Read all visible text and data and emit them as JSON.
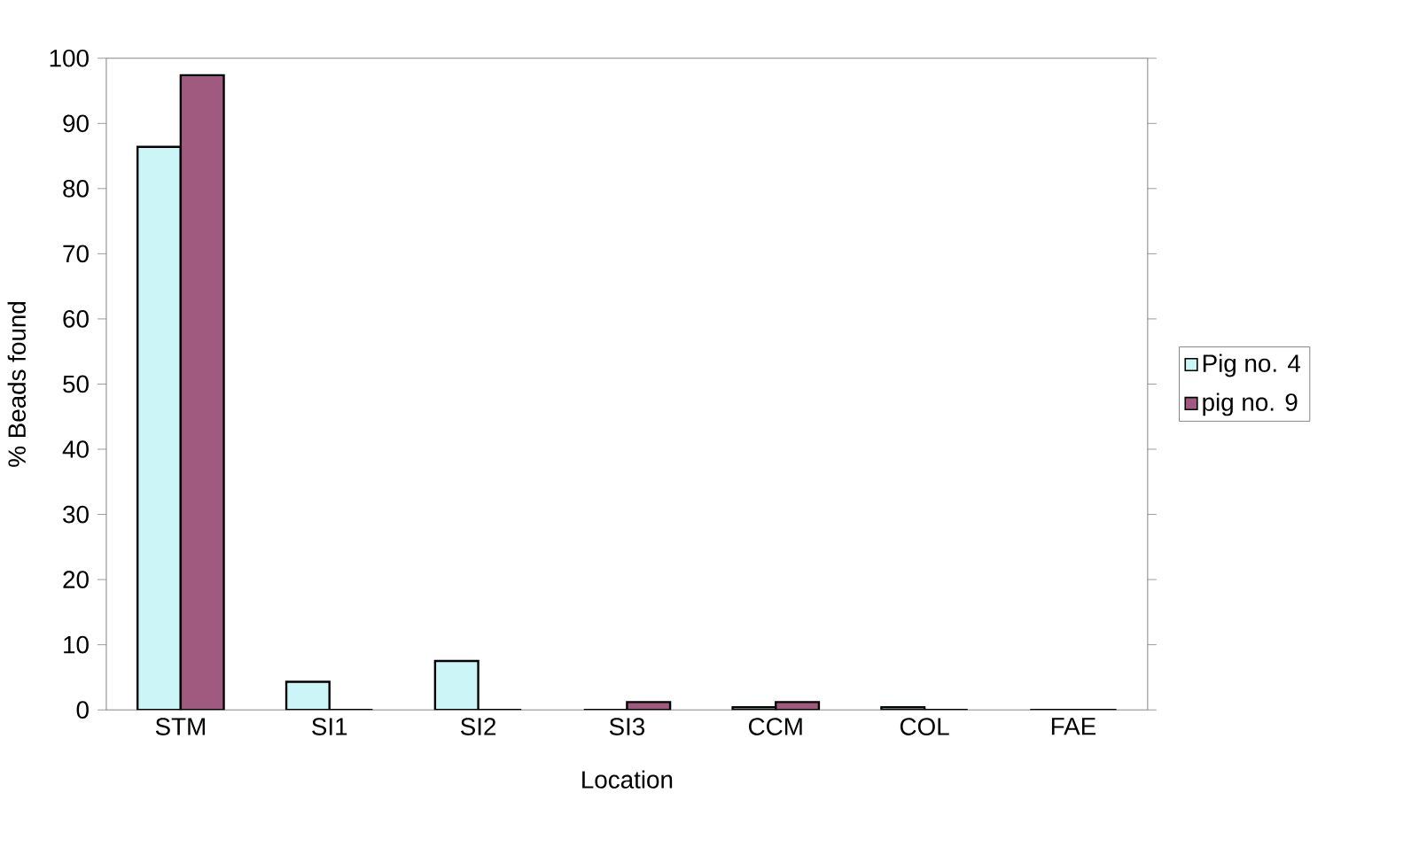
{
  "chart_data": {
    "type": "bar",
    "xlabel": "Location",
    "ylabel": "% Beads found",
    "categories": [
      "STM",
      "SI1",
      "SI2",
      "SI3",
      "CCM",
      "COL",
      "FAE"
    ],
    "series": [
      {
        "name": "Pig no. 4",
        "color": "#ccf5f8",
        "values": [
          86.4,
          4.3,
          7.5,
          0,
          0.4,
          0.4,
          0
        ]
      },
      {
        "name": "pig no. 9",
        "color": "#a05a80",
        "values": [
          97.4,
          0,
          0,
          1.2,
          1.2,
          0,
          0
        ]
      }
    ],
    "ylim": [
      0,
      100
    ],
    "yticks": [
      0,
      10,
      20,
      30,
      40,
      50,
      60,
      70,
      80,
      90,
      100
    ],
    "grid": false,
    "legend": "right"
  }
}
